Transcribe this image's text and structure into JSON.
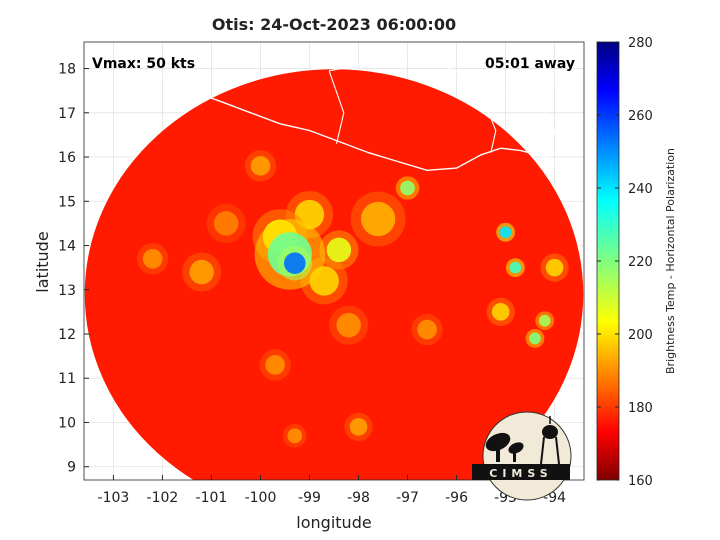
{
  "chart_data": {
    "type": "heatmap",
    "title": "Otis: 24-Oct-2023 06:00:00",
    "xlabel": "longitude",
    "ylabel": "latitude",
    "xlim": [
      -103.6,
      -93.4
    ],
    "ylim": [
      8.7,
      18.6
    ],
    "xticks": [
      -103,
      -102,
      -101,
      -100,
      -99,
      -98,
      -97,
      -96,
      -95,
      -94
    ],
    "yticks": [
      9,
      10,
      11,
      12,
      13,
      14,
      15,
      16,
      17,
      18
    ],
    "grid": true,
    "annotations": {
      "vmax": "Vmax: 50 kts",
      "away": "05:01 away"
    },
    "colorbar": {
      "label": "Brightness Temp - Horizontal Polarization",
      "range": [
        160,
        280
      ],
      "ticks": [
        160,
        180,
        200,
        220,
        240,
        260,
        280
      ],
      "colormap": "jet"
    },
    "swath": {
      "center_lon": -98.5,
      "center_lat": 12.9,
      "radius_deg": 5.1,
      "background_value": 262
    },
    "features": [
      {
        "lon": -99.3,
        "lat": 13.6,
        "value": 188,
        "spread": 0.22
      },
      {
        "lon": -99.4,
        "lat": 13.8,
        "value": 218,
        "spread": 0.45
      },
      {
        "lon": -99.6,
        "lat": 14.2,
        "value": 236,
        "spread": 0.35
      },
      {
        "lon": -98.4,
        "lat": 13.9,
        "value": 232,
        "spread": 0.25
      },
      {
        "lon": -98.7,
        "lat": 13.2,
        "value": 240,
        "spread": 0.3
      },
      {
        "lon": -99.0,
        "lat": 14.7,
        "value": 240,
        "spread": 0.3
      },
      {
        "lon": -97.6,
        "lat": 14.6,
        "value": 244,
        "spread": 0.35
      },
      {
        "lon": -97.0,
        "lat": 15.3,
        "value": 222,
        "spread": 0.15
      },
      {
        "lon": -100.0,
        "lat": 15.8,
        "value": 246,
        "spread": 0.2
      },
      {
        "lon": -95.0,
        "lat": 14.3,
        "value": 202,
        "spread": 0.12
      },
      {
        "lon": -94.8,
        "lat": 13.5,
        "value": 212,
        "spread": 0.12
      },
      {
        "lon": -94.2,
        "lat": 12.3,
        "value": 224,
        "spread": 0.12
      },
      {
        "lon": -94.4,
        "lat": 11.9,
        "value": 220,
        "spread": 0.12
      },
      {
        "lon": -95.1,
        "lat": 12.5,
        "value": 240,
        "spread": 0.18
      },
      {
        "lon": -94.0,
        "lat": 13.5,
        "value": 240,
        "spread": 0.18
      },
      {
        "lon": -101.2,
        "lat": 13.4,
        "value": 246,
        "spread": 0.25
      },
      {
        "lon": -102.2,
        "lat": 13.7,
        "value": 248,
        "spread": 0.2
      },
      {
        "lon": -98.2,
        "lat": 12.2,
        "value": 248,
        "spread": 0.25
      },
      {
        "lon": -99.7,
        "lat": 11.3,
        "value": 248,
        "spread": 0.2
      },
      {
        "lon": -98.0,
        "lat": 9.9,
        "value": 246,
        "spread": 0.18
      },
      {
        "lon": -99.3,
        "lat": 9.7,
        "value": 248,
        "spread": 0.15
      },
      {
        "lon": -96.6,
        "lat": 12.1,
        "value": 248,
        "spread": 0.2
      },
      {
        "lon": -100.7,
        "lat": 14.5,
        "value": 250,
        "spread": 0.25
      }
    ],
    "coastline": [
      [
        -103.6,
        18.25
      ],
      [
        -103.0,
        18.15
      ],
      [
        -102.4,
        17.95
      ],
      [
        -101.8,
        17.7
      ],
      [
        -101.3,
        17.45
      ],
      [
        -100.8,
        17.25
      ],
      [
        -100.2,
        17.0
      ],
      [
        -99.6,
        16.75
      ],
      [
        -99.0,
        16.6
      ],
      [
        -98.4,
        16.35
      ],
      [
        -97.8,
        16.1
      ],
      [
        -97.2,
        15.9
      ],
      [
        -96.6,
        15.7
      ],
      [
        -96.0,
        15.75
      ],
      [
        -95.5,
        16.05
      ],
      [
        -95.1,
        16.2
      ],
      [
        -94.7,
        16.15
      ],
      [
        -94.2,
        16.0
      ],
      [
        -93.8,
        15.75
      ],
      [
        -93.4,
        15.5
      ]
    ],
    "borders": [
      [
        [
          -100.0,
          18.6
        ],
        [
          -99.6,
          18.35
        ],
        [
          -99.2,
          18.45
        ],
        [
          -98.9,
          18.2
        ],
        [
          -98.6,
          18.6
        ]
      ],
      [
        [
          -98.6,
          17.95
        ],
        [
          -98.1,
          18.05
        ],
        [
          -97.6,
          18.3
        ],
        [
          -97.2,
          18.2
        ],
        [
          -96.8,
          18.5
        ]
      ],
      [
        [
          -98.6,
          17.95
        ],
        [
          -98.3,
          17.0
        ],
        [
          -98.45,
          16.3
        ]
      ],
      [
        [
          -96.8,
          18.5
        ],
        [
          -96.3,
          18.1
        ],
        [
          -95.6,
          17.7
        ],
        [
          -95.0,
          17.4
        ],
        [
          -94.3,
          17.25
        ],
        [
          -93.9,
          17.9
        ],
        [
          -93.4,
          18.1
        ]
      ],
      [
        [
          -95.6,
          17.7
        ],
        [
          -95.2,
          16.6
        ],
        [
          -95.3,
          16.1
        ]
      ],
      [
        [
          -94.3,
          17.25
        ],
        [
          -94.0,
          16.6
        ],
        [
          -94.1,
          16.0
        ]
      ]
    ]
  },
  "logo": {
    "text": "CIMSS"
  }
}
